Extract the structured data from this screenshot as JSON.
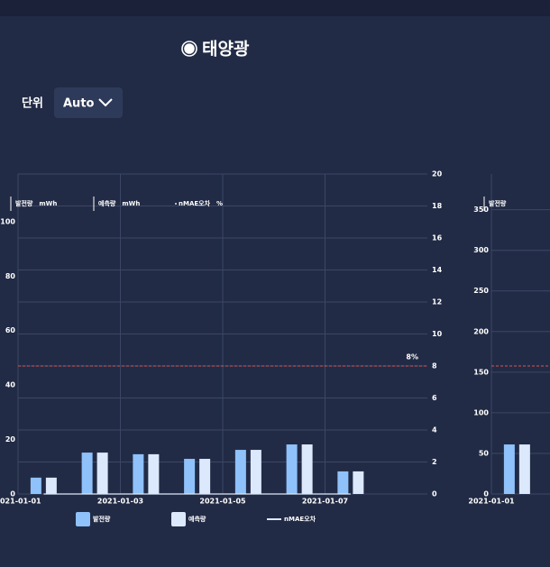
{
  "header": {
    "title": "태양광",
    "unit_label": "단위",
    "unit_value": "Auto"
  },
  "chart_data": [
    {
      "type": "bar",
      "x": [
        "2021-01-01",
        "2021-01-02",
        "2021-01-03",
        "2021-01-04",
        "2021-01-05",
        "2021-01-06",
        "2021-01-07"
      ],
      "xlim": [
        "2021-01-01",
        "2021-01-09"
      ],
      "xticks": [
        "2021-01-01",
        "2021-01-03",
        "2021-01-05",
        "2021-01-07"
      ],
      "ylim": [
        0,
        117.5
      ],
      "yticks": [
        0,
        20,
        40,
        60,
        80,
        100
      ],
      "y2lim": [
        0,
        20
      ],
      "y2ticks": [
        0,
        2,
        4,
        6,
        8,
        10,
        12,
        14,
        16,
        18,
        20
      ],
      "grid": true,
      "legend": "bottom",
      "series": [
        {
          "name": "발전량",
          "unit": "mWh",
          "color": "#8fc1fa",
          "values": [
            6,
            15.2,
            14.6,
            12.9,
            16.2,
            18.2,
            8.3
          ]
        },
        {
          "name": "예측량",
          "unit": "mWh",
          "color": "#dce8fb",
          "values": [
            6,
            15.2,
            14.6,
            12.9,
            16.2,
            18.2,
            8.3
          ]
        },
        {
          "name": "nMAE오차",
          "unit": "%",
          "type": "line",
          "axis": "y2",
          "color": "#dce8fb",
          "values": [
            0,
            0,
            0,
            0,
            0,
            0,
            0
          ]
        }
      ],
      "threshold": {
        "value": 8,
        "label": "8%",
        "axis": "y2",
        "color": "#d9534f"
      }
    },
    {
      "type": "bar",
      "x": [
        "2021-01-01"
      ],
      "xlim": [
        "2021-01-01",
        "2021-01-09"
      ],
      "xticks": [
        "2021-01-01"
      ],
      "ylim": [
        0,
        394
      ],
      "yticks": [
        0,
        50,
        100,
        150,
        200,
        250,
        300,
        350
      ],
      "y2lim": [
        0,
        20
      ],
      "grid": true,
      "series": [
        {
          "name": "발전량",
          "color": "#8fc1fa",
          "values": [
            61
          ]
        },
        {
          "color": "#dce8fb",
          "values": [
            61
          ]
        }
      ],
      "threshold": {
        "value": 8,
        "axis": "y2",
        "color": "#d9534f"
      }
    }
  ]
}
